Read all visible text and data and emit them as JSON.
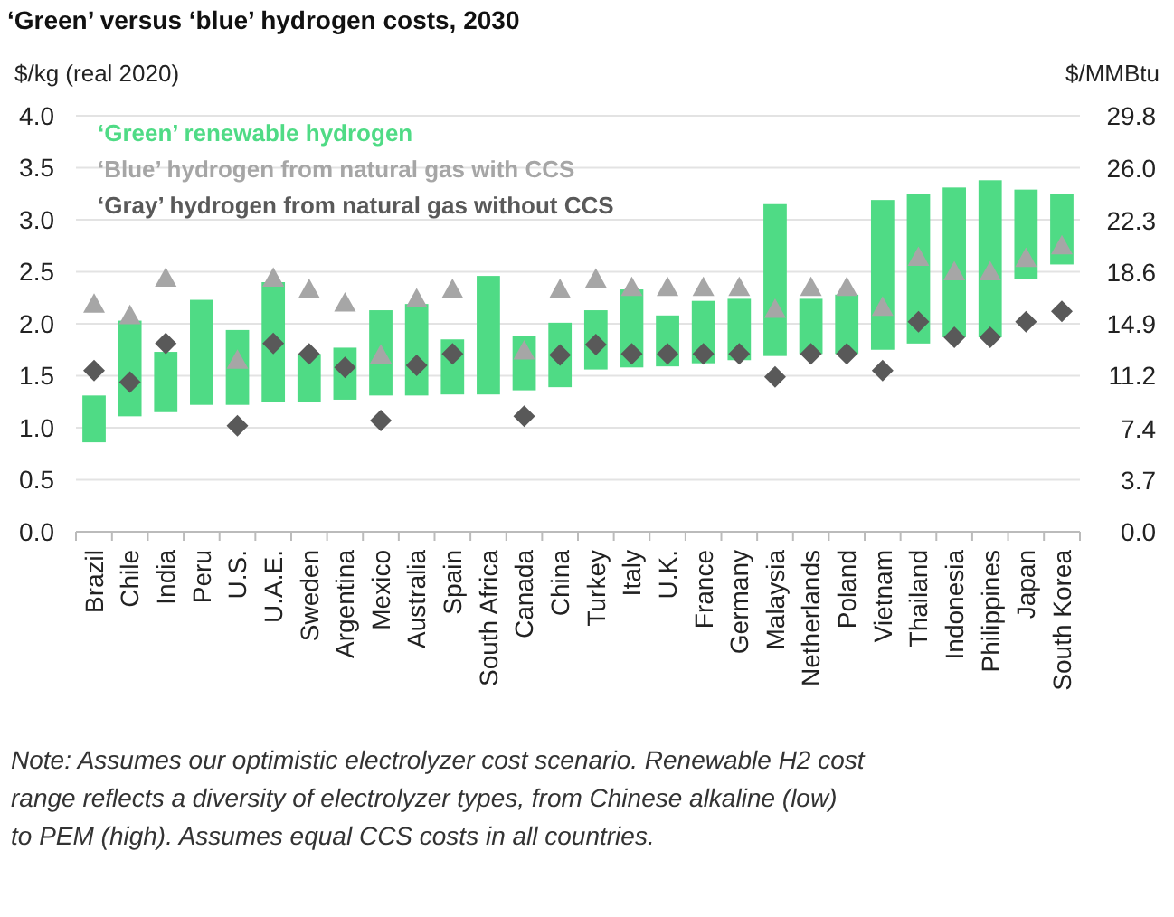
{
  "chart_data": {
    "type": "bar",
    "title": "‘Green’ versus ‘blue’ hydrogen costs, 2030",
    "ylabel": "$/kg (real 2020)",
    "y2label": "$/MMBtu",
    "categories": [
      "Brazil",
      "Chile",
      "India",
      "Peru",
      "U.S.",
      "U.A.E.",
      "Sweden",
      "Argentina",
      "Mexico",
      "Australia",
      "Spain",
      "South Africa",
      "Canada",
      "China",
      "Turkey",
      "Italy",
      "U.K.",
      "France",
      "Germany",
      "Malaysia",
      "Netherlands",
      "Poland",
      "Vietnam",
      "Thailand",
      "Indonesia",
      "Philippines",
      "Japan",
      "South Korea"
    ],
    "series": [
      {
        "name": "‘Green’ renewable hydrogen",
        "color": "#4fdb85",
        "base": [
          0.86,
          1.11,
          1.15,
          1.22,
          1.22,
          1.25,
          1.25,
          1.27,
          1.31,
          1.31,
          1.32,
          1.32,
          1.36,
          1.39,
          1.56,
          1.58,
          1.59,
          1.62,
          1.65,
          1.69,
          1.71,
          1.71,
          1.75,
          1.81,
          1.87,
          1.87,
          2.43,
          2.57
        ],
        "values": [
          0.45,
          0.92,
          0.58,
          1.01,
          0.72,
          1.15,
          0.46,
          0.5,
          0.82,
          0.88,
          0.53,
          1.14,
          0.52,
          0.62,
          0.57,
          0.75,
          0.49,
          0.6,
          0.59,
          1.46,
          0.53,
          0.57,
          1.44,
          1.44,
          1.44,
          1.51,
          0.86,
          0.68
        ]
      },
      {
        "name": "‘Blue’ hydrogen from natural gas with CCS",
        "type": "scatter",
        "marker": "triangle",
        "color": "#a6a6a6",
        "values": [
          2.19,
          2.08,
          2.44,
          null,
          1.65,
          2.44,
          2.33,
          2.2,
          1.7,
          2.24,
          2.33,
          null,
          1.74,
          2.33,
          2.43,
          2.35,
          2.35,
          2.35,
          2.35,
          2.14,
          2.35,
          2.35,
          2.16,
          2.64,
          2.5,
          2.5,
          2.63,
          2.75
        ]
      },
      {
        "name": "‘Gray’ hydrogen from natural gas without CCS",
        "type": "scatter",
        "marker": "diamond",
        "color": "#595959",
        "values": [
          1.55,
          1.44,
          1.81,
          null,
          1.02,
          1.81,
          1.71,
          1.58,
          1.07,
          1.6,
          1.71,
          null,
          1.11,
          1.7,
          1.8,
          1.71,
          1.71,
          1.71,
          1.71,
          1.49,
          1.71,
          1.71,
          1.55,
          2.02,
          1.87,
          1.87,
          2.02,
          2.12
        ]
      }
    ],
    "ylim": [
      0,
      4
    ],
    "yticks": [
      {
        "value": 0,
        "label": "0.0"
      },
      {
        "value": 0.5,
        "label": "0.5"
      },
      {
        "value": 1,
        "label": "1.0"
      },
      {
        "value": 1.5,
        "label": "1.5"
      },
      {
        "value": 2,
        "label": "2.0"
      },
      {
        "value": 2.5,
        "label": "2.5"
      },
      {
        "value": 3,
        "label": "3.0"
      },
      {
        "value": 3.5,
        "label": "3.5"
      },
      {
        "value": 4,
        "label": "4.0"
      }
    ],
    "y2lim": [
      0,
      29.8
    ],
    "y2ticks": [
      {
        "value": 0,
        "label": "0.0"
      },
      3.7,
      7.4,
      11.2,
      14.9,
      18.6,
      22.3,
      {
        "value": 26,
        "label": "26.0"
      },
      29.8
    ],
    "grid": "y",
    "legend": "top left",
    "annotations": [
      "Note: Assumes our optimistic electrolyzer cost scenario. Renewable H2 cost range reflects a diversity of electrolyzer types, from Chinese alkaline (low) to PEM (high). Assumes equal CCS costs in all countries."
    ]
  }
}
